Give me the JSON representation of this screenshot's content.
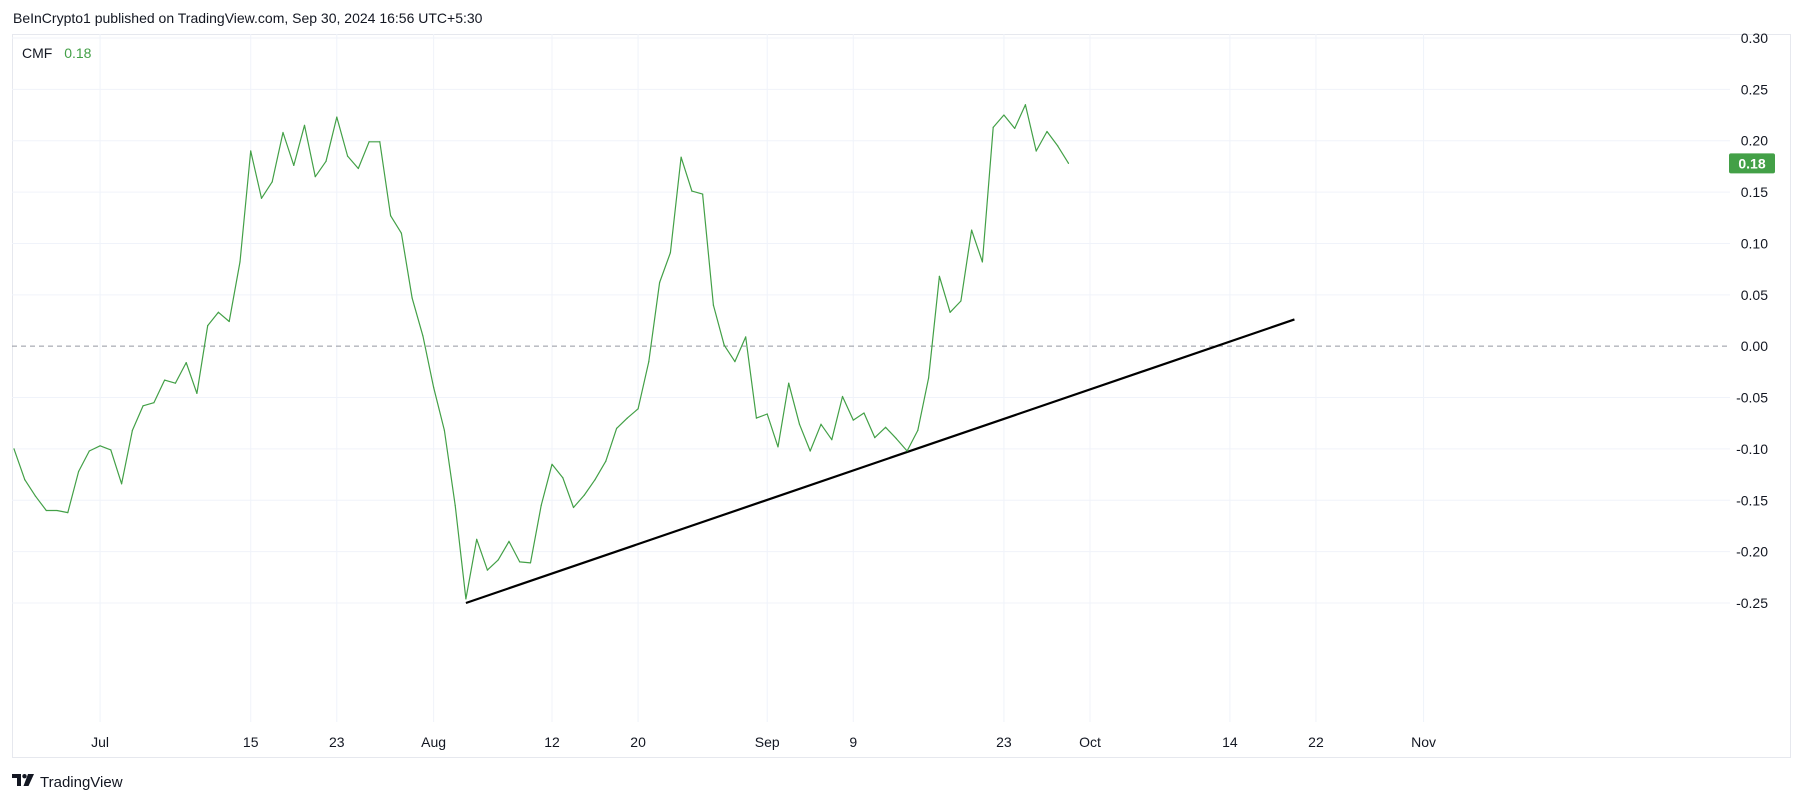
{
  "header": {
    "publish_text": "BeInCrypto1 published on TradingView.com, Sep 30, 2024 16:56 UTC+5:30"
  },
  "legend": {
    "indicator": "CMF",
    "value": "0.18"
  },
  "footer": {
    "brand": "TradingView"
  },
  "colors": {
    "series": "#43a047",
    "trendline": "#000000",
    "zero_line": "#9598a1",
    "grid": "#f0f3fa",
    "badge_bg": "#43a047"
  },
  "chart_data": {
    "type": "line",
    "title": "",
    "xlabel": "",
    "ylabel": "",
    "ylim": [
      -0.28,
      0.3
    ],
    "grid": true,
    "y_ticks": [
      "0.30",
      "0.25",
      "0.20",
      "0.15",
      "0.10",
      "0.05",
      "0.00",
      "-0.05",
      "-0.10",
      "-0.15",
      "-0.20",
      "-0.25"
    ],
    "x_ticks": [
      {
        "date": "2024-07-01",
        "label": "Jul"
      },
      {
        "date": "2024-07-15",
        "label": "15"
      },
      {
        "date": "2024-07-23",
        "label": "23"
      },
      {
        "date": "2024-08-01",
        "label": "Aug"
      },
      {
        "date": "2024-08-12",
        "label": "12"
      },
      {
        "date": "2024-08-20",
        "label": "20"
      },
      {
        "date": "2024-09-01",
        "label": "Sep"
      },
      {
        "date": "2024-09-09",
        "label": "9"
      },
      {
        "date": "2024-09-23",
        "label": "23"
      },
      {
        "date": "2024-10-01",
        "label": "Oct"
      },
      {
        "date": "2024-10-14",
        "label": "14"
      },
      {
        "date": "2024-10-22",
        "label": "22"
      },
      {
        "date": "2024-11-01",
        "label": "Nov"
      }
    ],
    "x_range": [
      "2024-06-23",
      "2024-11-08"
    ],
    "last_value_badge": "0.18",
    "reference_line": 0.0,
    "series": [
      {
        "name": "CMF",
        "points": [
          [
            "2024-06-23",
            -0.1
          ],
          [
            "2024-06-24",
            -0.13
          ],
          [
            "2024-06-25",
            -0.146
          ],
          [
            "2024-06-26",
            -0.16
          ],
          [
            "2024-06-27",
            -0.16
          ],
          [
            "2024-06-28",
            -0.162
          ],
          [
            "2024-06-29",
            -0.122
          ],
          [
            "2024-06-30",
            -0.102
          ],
          [
            "2024-07-01",
            -0.097
          ],
          [
            "2024-07-02",
            -0.101
          ],
          [
            "2024-07-03",
            -0.134
          ],
          [
            "2024-07-04",
            -0.082
          ],
          [
            "2024-07-05",
            -0.058
          ],
          [
            "2024-07-06",
            -0.055
          ],
          [
            "2024-07-07",
            -0.033
          ],
          [
            "2024-07-08",
            -0.036
          ],
          [
            "2024-07-09",
            -0.016
          ],
          [
            "2024-07-10",
            -0.046
          ],
          [
            "2024-07-11",
            0.02
          ],
          [
            "2024-07-12",
            0.033
          ],
          [
            "2024-07-13",
            0.024
          ],
          [
            "2024-07-14",
            0.082
          ],
          [
            "2024-07-15",
            0.19
          ],
          [
            "2024-07-16",
            0.144
          ],
          [
            "2024-07-17",
            0.16
          ],
          [
            "2024-07-18",
            0.208
          ],
          [
            "2024-07-19",
            0.176
          ],
          [
            "2024-07-20",
            0.215
          ],
          [
            "2024-07-21",
            0.165
          ],
          [
            "2024-07-22",
            0.18
          ],
          [
            "2024-07-23",
            0.223
          ],
          [
            "2024-07-24",
            0.185
          ],
          [
            "2024-07-25",
            0.173
          ],
          [
            "2024-07-26",
            0.199
          ],
          [
            "2024-07-27",
            0.199
          ],
          [
            "2024-07-28",
            0.127
          ],
          [
            "2024-07-29",
            0.11
          ],
          [
            "2024-07-30",
            0.047
          ],
          [
            "2024-07-31",
            0.01
          ],
          [
            "2024-08-01",
            -0.04
          ],
          [
            "2024-08-02",
            -0.082
          ],
          [
            "2024-08-03",
            -0.155
          ],
          [
            "2024-08-04",
            -0.246
          ],
          [
            "2024-08-05",
            -0.188
          ],
          [
            "2024-08-06",
            -0.218
          ],
          [
            "2024-08-07",
            -0.208
          ],
          [
            "2024-08-08",
            -0.19
          ],
          [
            "2024-08-09",
            -0.21
          ],
          [
            "2024-08-10",
            -0.211
          ],
          [
            "2024-08-11",
            -0.155
          ],
          [
            "2024-08-12",
            -0.115
          ],
          [
            "2024-08-13",
            -0.128
          ],
          [
            "2024-08-14",
            -0.157
          ],
          [
            "2024-08-15",
            -0.145
          ],
          [
            "2024-08-16",
            -0.13
          ],
          [
            "2024-08-17",
            -0.112
          ],
          [
            "2024-08-18",
            -0.08
          ],
          [
            "2024-08-19",
            -0.07
          ],
          [
            "2024-08-20",
            -0.061
          ],
          [
            "2024-08-21",
            -0.015
          ],
          [
            "2024-08-22",
            0.062
          ],
          [
            "2024-08-23",
            0.091
          ],
          [
            "2024-08-24",
            0.184
          ],
          [
            "2024-08-25",
            0.151
          ],
          [
            "2024-08-26",
            0.148
          ],
          [
            "2024-08-27",
            0.04
          ],
          [
            "2024-08-28",
            0.001
          ],
          [
            "2024-08-29",
            -0.015
          ],
          [
            "2024-08-30",
            0.009
          ],
          [
            "2024-08-31",
            -0.07
          ],
          [
            "2024-09-01",
            -0.066
          ],
          [
            "2024-09-02",
            -0.098
          ],
          [
            "2024-09-03",
            -0.036
          ],
          [
            "2024-09-04",
            -0.076
          ],
          [
            "2024-09-05",
            -0.102
          ],
          [
            "2024-09-06",
            -0.076
          ],
          [
            "2024-09-07",
            -0.091
          ],
          [
            "2024-09-08",
            -0.049
          ],
          [
            "2024-09-09",
            -0.072
          ],
          [
            "2024-09-10",
            -0.065
          ],
          [
            "2024-09-11",
            -0.089
          ],
          [
            "2024-09-12",
            -0.079
          ],
          [
            "2024-09-13",
            -0.09
          ],
          [
            "2024-09-14",
            -0.102
          ],
          [
            "2024-09-15",
            -0.082
          ],
          [
            "2024-09-16",
            -0.031
          ],
          [
            "2024-09-17",
            0.068
          ],
          [
            "2024-09-18",
            0.033
          ],
          [
            "2024-09-19",
            0.044
          ],
          [
            "2024-09-20",
            0.113
          ],
          [
            "2024-09-21",
            0.082
          ],
          [
            "2024-09-22",
            0.213
          ],
          [
            "2024-09-23",
            0.225
          ],
          [
            "2024-09-24",
            0.212
          ],
          [
            "2024-09-25",
            0.235
          ],
          [
            "2024-09-26",
            0.19
          ],
          [
            "2024-09-27",
            0.209
          ],
          [
            "2024-09-28",
            0.195
          ],
          [
            "2024-09-29",
            0.178
          ]
        ]
      }
    ],
    "trendline": {
      "start": [
        "2024-08-04",
        -0.25
      ],
      "end": [
        "2024-10-20",
        0.026
      ]
    }
  }
}
